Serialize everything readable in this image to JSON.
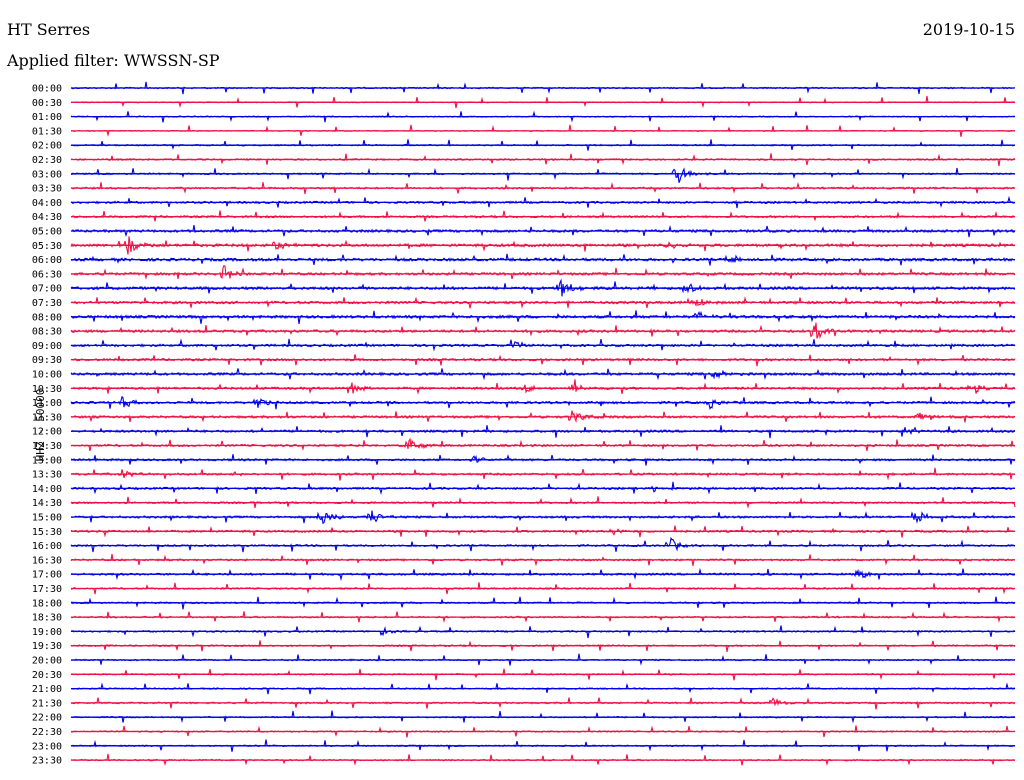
{
  "header": {
    "station": "HT Serres",
    "date": "2019-10-15",
    "filter_label": "Applied filter: WWSSN-SP"
  },
  "chart_data": {
    "type": "line",
    "ylabel": "HHZ - 50000",
    "row_labels": [
      "00:00",
      "00:30",
      "01:00",
      "01:30",
      "02:00",
      "02:30",
      "03:00",
      "03:30",
      "04:00",
      "04:30",
      "05:00",
      "05:30",
      "06:00",
      "06:30",
      "07:00",
      "07:30",
      "08:00",
      "08:30",
      "09:00",
      "09:30",
      "10:00",
      "10:30",
      "11:00",
      "11:30",
      "12:00",
      "12:30",
      "13:00",
      "13:30",
      "14:00",
      "14:30",
      "15:00",
      "15:30",
      "16:00",
      "16:30",
      "17:00",
      "17:30",
      "18:00",
      "18:30",
      "19:00",
      "19:30",
      "20:00",
      "20:30",
      "21:00",
      "21:30",
      "22:00",
      "22:30",
      "23:00",
      "23:30"
    ],
    "trace_colors": [
      "#0000e6",
      "#ee1144"
    ],
    "noise_level": [
      0.3,
      0.2,
      0.25,
      0.2,
      0.3,
      0.35,
      0.35,
      0.4,
      0.45,
      0.45,
      0.55,
      0.6,
      0.6,
      0.55,
      0.6,
      0.55,
      0.6,
      0.55,
      0.5,
      0.5,
      0.55,
      0.5,
      0.5,
      0.5,
      0.5,
      0.45,
      0.45,
      0.45,
      0.45,
      0.4,
      0.45,
      0.45,
      0.4,
      0.4,
      0.45,
      0.35,
      0.35,
      0.35,
      0.35,
      0.35,
      0.3,
      0.3,
      0.3,
      0.35,
      0.3,
      0.3,
      0.3,
      0.3
    ],
    "events": [
      {
        "row": 6,
        "minute": 19.2,
        "amp": 12
      },
      {
        "row": 11,
        "minute": 1.8,
        "amp": 12
      },
      {
        "row": 11,
        "minute": 6.5,
        "amp": 6
      },
      {
        "row": 11,
        "minute": 18.9,
        "amp": 5
      },
      {
        "row": 12,
        "minute": 20.9,
        "amp": 6
      },
      {
        "row": 13,
        "minute": 4.8,
        "amp": 11
      },
      {
        "row": 14,
        "minute": 15.5,
        "amp": 12
      },
      {
        "row": 14,
        "minute": 19.5,
        "amp": 8
      },
      {
        "row": 15,
        "minute": 19.8,
        "amp": 6
      },
      {
        "row": 16,
        "minute": 19.9,
        "amp": 6
      },
      {
        "row": 17,
        "minute": 23.6,
        "amp": 12
      },
      {
        "row": 18,
        "minute": 14.1,
        "amp": 5
      },
      {
        "row": 20,
        "minute": 20.4,
        "amp": 6
      },
      {
        "row": 21,
        "minute": 8.9,
        "amp": 6
      },
      {
        "row": 21,
        "minute": 14.4,
        "amp": 5
      },
      {
        "row": 21,
        "minute": 15.9,
        "amp": 5
      },
      {
        "row": 21,
        "minute": 28.6,
        "amp": 6
      },
      {
        "row": 22,
        "minute": 1.6,
        "amp": 7
      },
      {
        "row": 22,
        "minute": 5.9,
        "amp": 8
      },
      {
        "row": 22,
        "minute": 20.3,
        "amp": 6
      },
      {
        "row": 23,
        "minute": 15.9,
        "amp": 9
      },
      {
        "row": 23,
        "minute": 26.9,
        "amp": 5
      },
      {
        "row": 24,
        "minute": 26.4,
        "amp": 6
      },
      {
        "row": 25,
        "minute": 10.6,
        "amp": 12
      },
      {
        "row": 26,
        "minute": 12.8,
        "amp": 5
      },
      {
        "row": 27,
        "minute": 1.6,
        "amp": 6
      },
      {
        "row": 27,
        "minute": 5.1,
        "amp": 4
      },
      {
        "row": 28,
        "minute": 18.5,
        "amp": 4
      },
      {
        "row": 30,
        "minute": 7.9,
        "amp": 11
      },
      {
        "row": 30,
        "minute": 9.5,
        "amp": 9
      },
      {
        "row": 30,
        "minute": 26.8,
        "amp": 8
      },
      {
        "row": 31,
        "minute": 17.2,
        "amp": 5
      },
      {
        "row": 32,
        "minute": 19.0,
        "amp": 9
      },
      {
        "row": 34,
        "minute": 25.0,
        "amp": 6
      },
      {
        "row": 38,
        "minute": 9.9,
        "amp": 4
      },
      {
        "row": 43,
        "minute": 22.3,
        "amp": 6
      }
    ]
  }
}
